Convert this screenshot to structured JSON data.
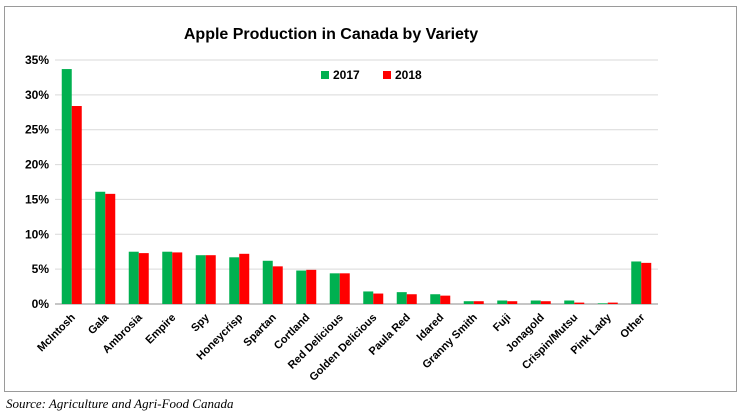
{
  "chart_data": {
    "type": "bar",
    "title": "Apple Production in Canada by Variety",
    "xlabel": "",
    "ylabel": "",
    "ylim": [
      0,
      35
    ],
    "yticks": [
      "0%",
      "5%",
      "10%",
      "15%",
      "20%",
      "25%",
      "30%",
      "35%"
    ],
    "ytick_values": [
      0,
      5,
      10,
      15,
      20,
      25,
      30,
      35
    ],
    "grid": "horizontal",
    "legend_position": "top-center",
    "categories": [
      "McIntosh",
      "Gala",
      "Ambrosia",
      "Empire",
      "Spy",
      "Honeycrisp",
      "Spartan",
      "Cortland",
      "Red  Delicious",
      "Golden Delicious",
      "Paula Red",
      "Idared",
      "Granny Smith",
      "Fuji",
      "Jonagold",
      "Crispin/Mutsu",
      "Pink Lady",
      "Other"
    ],
    "series": [
      {
        "name": "2017",
        "color": "#00b050",
        "values": [
          33.7,
          16.1,
          7.5,
          7.5,
          7.0,
          6.7,
          6.2,
          4.8,
          4.4,
          1.8,
          1.7,
          1.4,
          0.4,
          0.5,
          0.5,
          0.5,
          0.1,
          6.1
        ]
      },
      {
        "name": "2018",
        "color": "#ff0000",
        "values": [
          28.4,
          15.8,
          7.3,
          7.4,
          7.0,
          7.2,
          5.4,
          4.9,
          4.4,
          1.5,
          1.4,
          1.2,
          0.4,
          0.4,
          0.4,
          0.2,
          0.2,
          5.9
        ]
      }
    ]
  },
  "source": "Source: Agriculture and Agri-Food Canada"
}
